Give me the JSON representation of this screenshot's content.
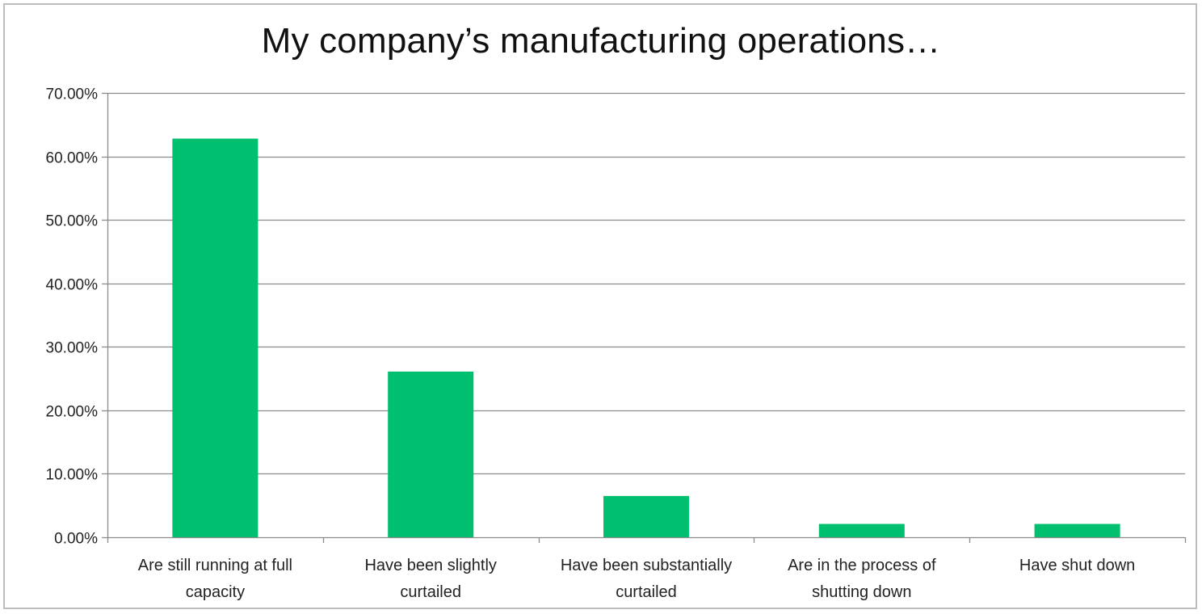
{
  "chart_data": {
    "type": "bar",
    "title": "My company’s manufacturing operations…",
    "xlabel": "",
    "ylabel": "",
    "categories": [
      "Are still running at full capacity",
      "Have been slightly curtailed",
      "Have been substantially curtailed",
      "Are in the process of shutting down",
      "Have shut down"
    ],
    "category_label_lines": [
      [
        "Are still running at full",
        "capacity"
      ],
      [
        "Have been slightly",
        "curtailed"
      ],
      [
        "Have been substantially",
        "curtailed"
      ],
      [
        "Are in the process of",
        "shutting down"
      ],
      [
        "Have shut down"
      ]
    ],
    "values": [
      62.8,
      26.1,
      6.5,
      2.1,
      2.1
    ],
    "ylim": [
      0,
      70
    ],
    "yticks": [
      0,
      10,
      20,
      30,
      40,
      50,
      60,
      70
    ],
    "ytick_labels": [
      "0.00%",
      "10.00%",
      "20.00%",
      "30.00%",
      "40.00%",
      "50.00%",
      "60.00%",
      "70.00%"
    ],
    "grid": true,
    "legend": "none",
    "colors": {
      "bar": "#00bf6f",
      "gridline": "#8c8c8c",
      "axis": "#8c8c8c"
    }
  }
}
